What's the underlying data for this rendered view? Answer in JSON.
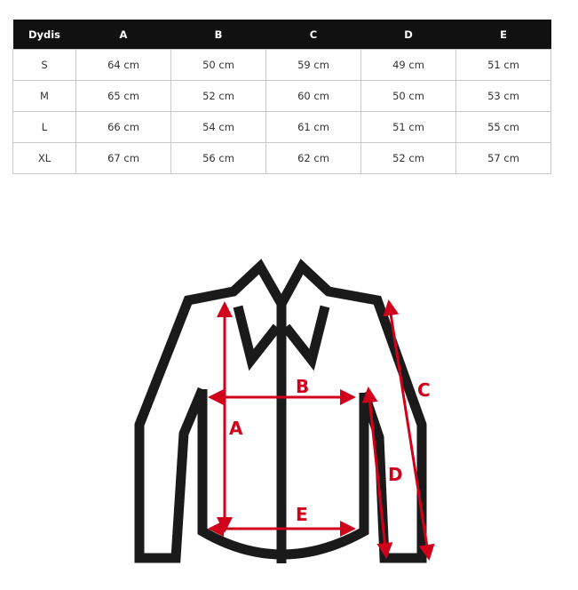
{
  "size_table": {
    "headers": [
      "Dydis",
      "A",
      "B",
      "C",
      "D",
      "E"
    ],
    "rows": [
      [
        "S",
        "64 cm",
        "50 cm",
        "59 cm",
        "49 cm",
        "51 cm"
      ],
      [
        "M",
        "65 cm",
        "52 cm",
        "60 cm",
        "50 cm",
        "53 cm"
      ],
      [
        "L",
        "66 cm",
        "54 cm",
        "61 cm",
        "51 cm",
        "55 cm"
      ],
      [
        "XL",
        "67 cm",
        "56 cm",
        "62 cm",
        "52 cm",
        "57 cm"
      ]
    ]
  },
  "diagram": {
    "labels": {
      "a": "A",
      "b": "B",
      "c": "C",
      "d": "D",
      "e": "E"
    },
    "colors": {
      "outline": "#1a1a1a",
      "measure": "#d0021b"
    }
  }
}
